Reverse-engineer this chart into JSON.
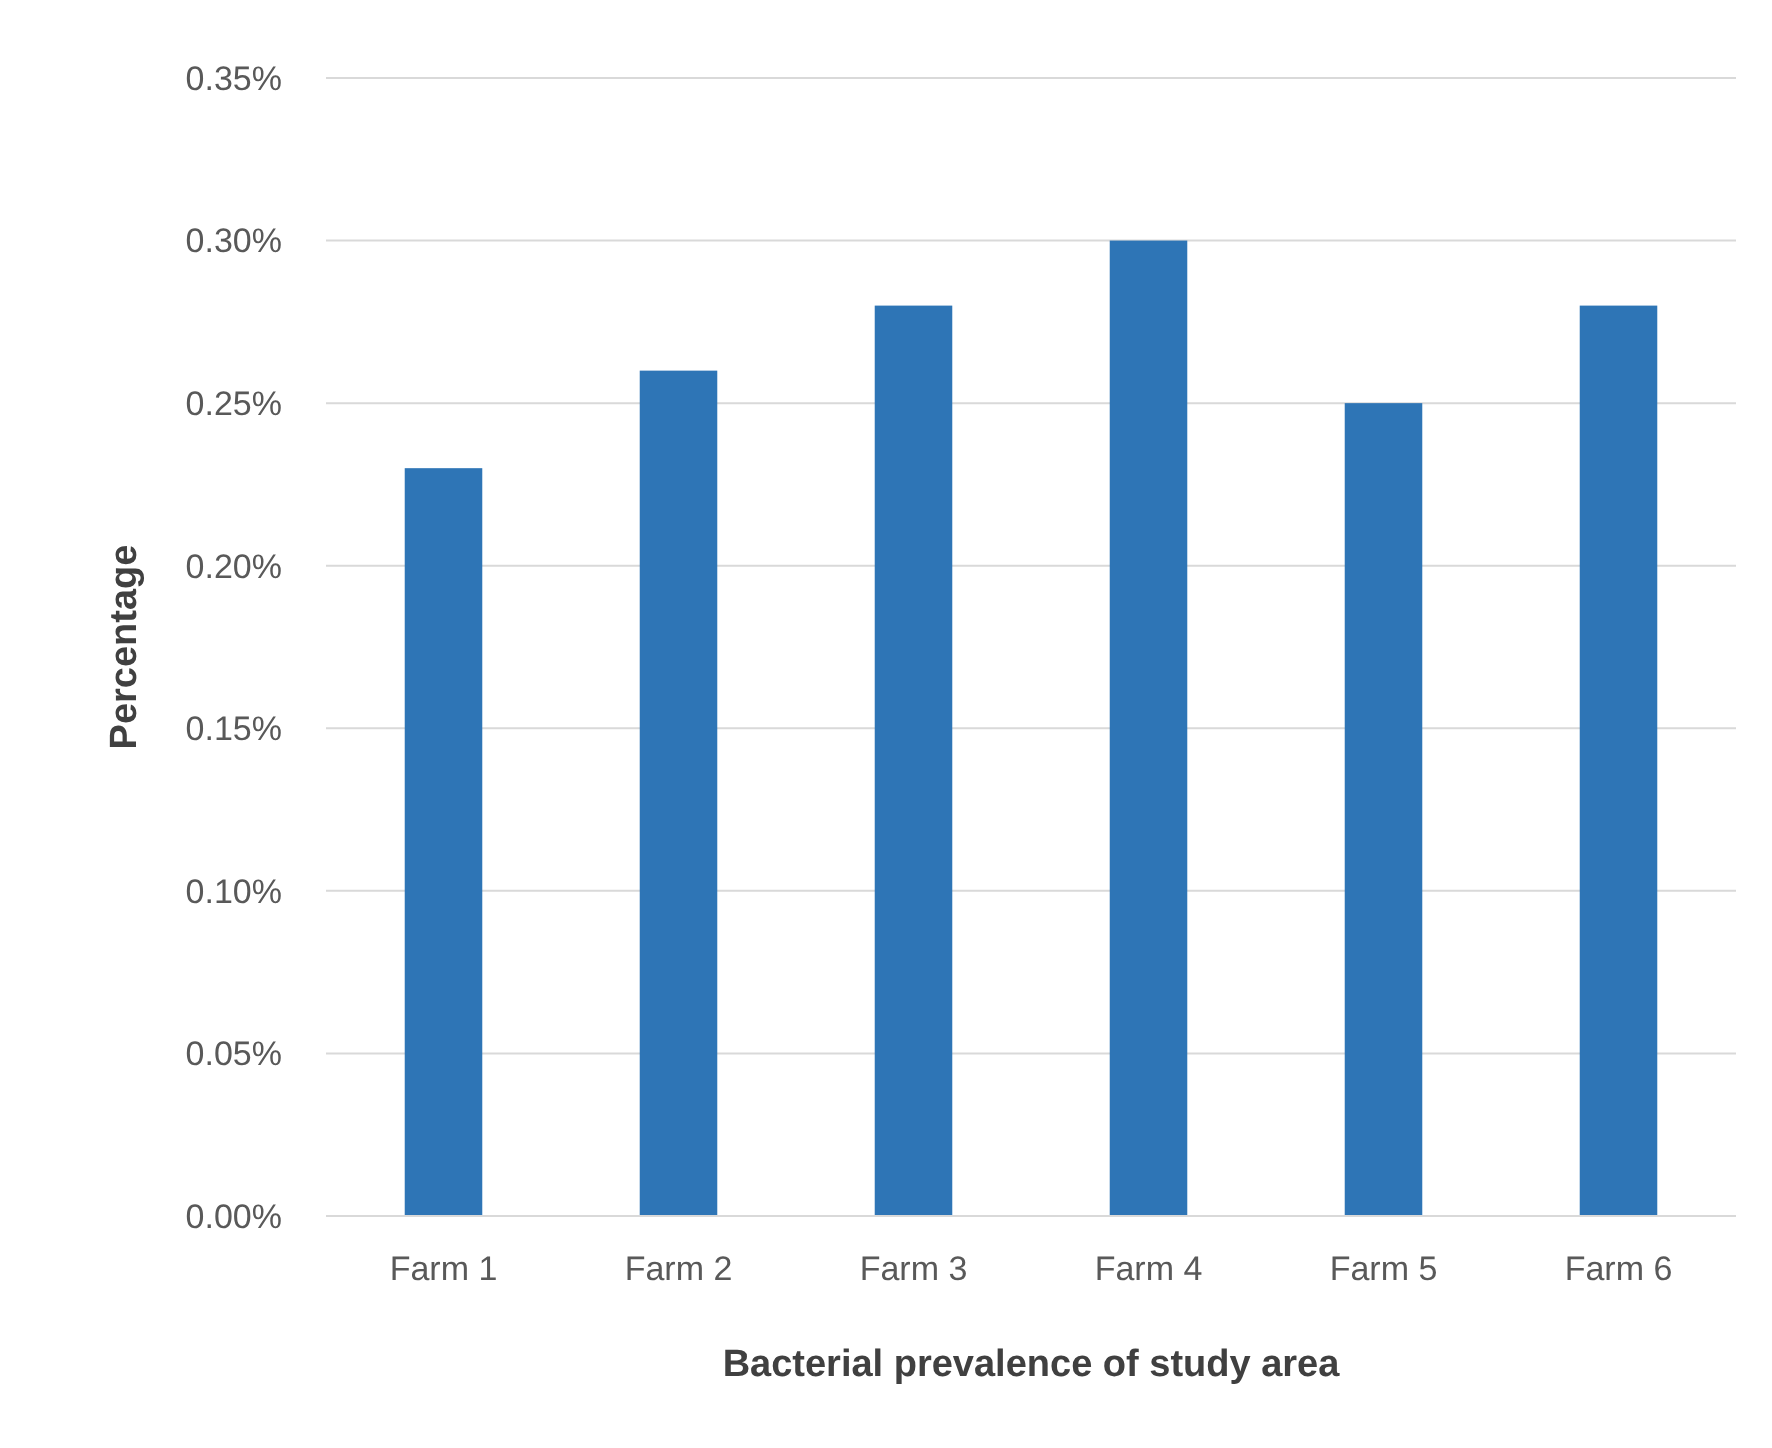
{
  "chart_data": {
    "type": "bar",
    "xlabel": "Bacterial prevalence of study area",
    "ylabel": "Percentage",
    "categories": [
      "Farm 1",
      "Farm 2",
      "Farm 3",
      "Farm 4",
      "Farm 5",
      "Farm 6"
    ],
    "values": [
      0.23,
      0.26,
      0.28,
      0.3,
      0.25,
      0.28
    ],
    "color": "#2e75b6",
    "ylim": [
      0,
      0.35
    ],
    "yticks": [
      {
        "value": 0,
        "label": "0.00%"
      },
      {
        "value": 0.05,
        "label": "0.05%"
      },
      {
        "value": 0.1,
        "label": "0.10%"
      },
      {
        "value": 0.15,
        "label": "0.15%"
      },
      {
        "value": 0.2,
        "label": "0.20%"
      },
      {
        "value": 0.25,
        "label": "0.25%"
      },
      {
        "value": 0.3,
        "label": "0.30%"
      },
      {
        "value": 0.35,
        "label": "0.35%"
      }
    ],
    "grid": "y"
  }
}
